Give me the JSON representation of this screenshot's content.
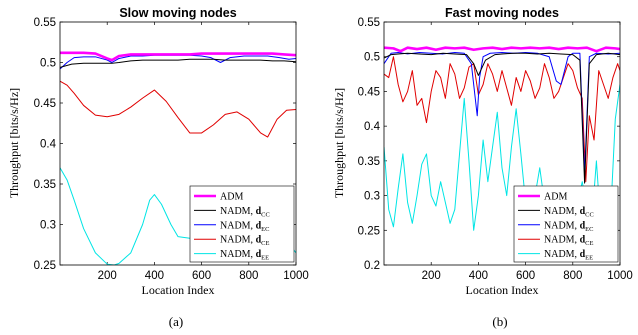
{
  "chart_data": [
    {
      "type": "line",
      "caption": "(a)",
      "title": "Slow moving nodes",
      "xlabel": "Location Index",
      "ylabel": "Throughput [bits/s/Hz]",
      "xlim": [
        0,
        1000
      ],
      "ylim": [
        0.25,
        0.55
      ],
      "xticks": [
        200,
        400,
        600,
        800,
        1000
      ],
      "yticks": [
        0.25,
        0.3,
        0.35,
        0.4,
        0.45,
        0.5,
        0.55
      ],
      "ytick_labels": [
        "0.25",
        "0.3",
        "0.35",
        "0.4",
        "0.45",
        "0.5",
        "0.55"
      ],
      "grid": false,
      "legend_position": "bottom-right",
      "series": [
        {
          "name": "ADM",
          "color": "#ff00ff",
          "width": 2.6,
          "x": [
            0,
            50,
            100,
            150,
            200,
            220,
            250,
            300,
            350,
            400,
            450,
            500,
            550,
            600,
            650,
            700,
            750,
            800,
            850,
            900,
            950,
            1000
          ],
          "y": [
            0.512,
            0.512,
            0.512,
            0.511,
            0.505,
            0.503,
            0.508,
            0.51,
            0.51,
            0.51,
            0.51,
            0.51,
            0.51,
            0.511,
            0.511,
            0.511,
            0.511,
            0.511,
            0.511,
            0.511,
            0.51,
            0.509
          ]
        },
        {
          "name": "NADM, dCC",
          "color": "#000000",
          "width": 1,
          "x": [
            0,
            50,
            100,
            150,
            200,
            220,
            250,
            300,
            350,
            400,
            450,
            500,
            550,
            600,
            650,
            700,
            750,
            800,
            850,
            900,
            950,
            1000
          ],
          "y": [
            0.494,
            0.498,
            0.499,
            0.499,
            0.499,
            0.499,
            0.5,
            0.502,
            0.503,
            0.503,
            0.503,
            0.503,
            0.504,
            0.504,
            0.504,
            0.503,
            0.503,
            0.503,
            0.503,
            0.502,
            0.502,
            0.501
          ]
        },
        {
          "name": "NADM, dEC",
          "color": "#0000ff",
          "width": 1,
          "x": [
            0,
            30,
            60,
            100,
            150,
            200,
            220,
            250,
            300,
            350,
            400,
            450,
            500,
            550,
            600,
            640,
            680,
            720,
            780,
            830,
            880,
            930,
            970,
            1000
          ],
          "y": [
            0.492,
            0.5,
            0.506,
            0.507,
            0.507,
            0.503,
            0.5,
            0.505,
            0.508,
            0.508,
            0.509,
            0.509,
            0.509,
            0.509,
            0.508,
            0.506,
            0.5,
            0.506,
            0.508,
            0.508,
            0.508,
            0.506,
            0.504,
            0.505
          ]
        },
        {
          "name": "NADM, dCE",
          "color": "#e00000",
          "width": 1,
          "x": [
            0,
            30,
            60,
            100,
            150,
            200,
            250,
            300,
            350,
            400,
            450,
            500,
            550,
            600,
            650,
            700,
            750,
            800,
            850,
            880,
            920,
            960,
            1000
          ],
          "y": [
            0.477,
            0.472,
            0.462,
            0.447,
            0.435,
            0.433,
            0.436,
            0.445,
            0.456,
            0.466,
            0.452,
            0.432,
            0.413,
            0.413,
            0.423,
            0.436,
            0.439,
            0.43,
            0.413,
            0.408,
            0.43,
            0.441,
            0.442
          ]
        },
        {
          "name": "NADM, dEE",
          "color": "#00e5e5",
          "width": 1,
          "x": [
            0,
            30,
            60,
            100,
            150,
            200,
            230,
            250,
            300,
            350,
            380,
            400,
            430,
            470,
            500,
            550,
            600,
            650,
            700,
            750,
            800,
            850,
            880,
            920,
            960,
            1000
          ],
          "y": [
            0.37,
            0.355,
            0.33,
            0.295,
            0.265,
            0.251,
            0.25,
            0.252,
            0.265,
            0.3,
            0.33,
            0.337,
            0.325,
            0.3,
            0.285,
            0.283,
            0.285,
            0.295,
            0.305,
            0.31,
            0.309,
            0.305,
            0.305,
            0.3,
            0.28,
            0.265
          ]
        }
      ],
      "legend": [
        "ADM",
        "NADM, dCC",
        "NADM, dEC",
        "NADM, dCE",
        "NADM, dEE"
      ]
    },
    {
      "type": "line",
      "caption": "(b)",
      "title": "Fast moving nodes",
      "xlabel": "Location Index",
      "ylabel": "Throughput [bits/s/Hz]",
      "xlim": [
        0,
        1000
      ],
      "ylim": [
        0.2,
        0.55
      ],
      "xticks": [
        200,
        400,
        600,
        800,
        1000
      ],
      "yticks": [
        0.2,
        0.25,
        0.3,
        0.35,
        0.4,
        0.45,
        0.5,
        0.55
      ],
      "ytick_labels": [
        "0.2",
        "0.25",
        "0.3",
        "0.35",
        "0.4",
        "0.45",
        "0.5",
        "0.55"
      ],
      "grid": false,
      "legend_position": "bottom-right",
      "series": [
        {
          "name": "ADM",
          "color": "#ff00ff",
          "width": 2.6,
          "x": [
            0,
            40,
            70,
            100,
            140,
            180,
            220,
            260,
            300,
            340,
            380,
            420,
            460,
            500,
            540,
            580,
            620,
            660,
            700,
            740,
            780,
            820,
            860,
            900,
            940,
            980,
            1000
          ],
          "y": [
            0.513,
            0.512,
            0.508,
            0.513,
            0.511,
            0.513,
            0.51,
            0.513,
            0.512,
            0.513,
            0.51,
            0.512,
            0.513,
            0.511,
            0.513,
            0.512,
            0.513,
            0.512,
            0.513,
            0.511,
            0.513,
            0.512,
            0.513,
            0.508,
            0.513,
            0.512,
            0.511
          ]
        },
        {
          "name": "NADM, dCC",
          "color": "#000000",
          "width": 1,
          "x": [
            0,
            30,
            60,
            100,
            150,
            200,
            250,
            300,
            350,
            380,
            400,
            430,
            470,
            500,
            550,
            600,
            650,
            700,
            750,
            800,
            830,
            850,
            870,
            900,
            950,
            1000
          ],
          "y": [
            0.498,
            0.503,
            0.504,
            0.505,
            0.504,
            0.503,
            0.505,
            0.504,
            0.503,
            0.49,
            0.473,
            0.495,
            0.503,
            0.504,
            0.505,
            0.505,
            0.504,
            0.505,
            0.504,
            0.503,
            0.495,
            0.318,
            0.49,
            0.503,
            0.505,
            0.503
          ]
        },
        {
          "name": "NADM, dEC",
          "color": "#0000ff",
          "width": 1,
          "x": [
            0,
            30,
            60,
            100,
            150,
            200,
            250,
            300,
            340,
            370,
            395,
            405,
            420,
            450,
            500,
            550,
            600,
            650,
            700,
            730,
            750,
            780,
            800,
            830,
            850,
            870,
            900,
            950,
            1000
          ],
          "y": [
            0.49,
            0.505,
            0.506,
            0.504,
            0.506,
            0.505,
            0.504,
            0.506,
            0.505,
            0.49,
            0.415,
            0.47,
            0.5,
            0.505,
            0.506,
            0.505,
            0.506,
            0.505,
            0.5,
            0.465,
            0.46,
            0.5,
            0.505,
            0.505,
            0.33,
            0.5,
            0.505,
            0.504,
            0.505
          ]
        },
        {
          "name": "NADM, dCE",
          "color": "#e00000",
          "width": 1,
          "x": [
            0,
            20,
            40,
            60,
            80,
            100,
            120,
            140,
            160,
            180,
            200,
            220,
            240,
            260,
            280,
            300,
            320,
            340,
            360,
            380,
            400,
            420,
            440,
            460,
            480,
            500,
            520,
            540,
            560,
            580,
            600,
            620,
            640,
            660,
            680,
            700,
            720,
            740,
            760,
            780,
            800,
            820,
            840,
            855,
            870,
            890,
            910,
            930,
            950,
            970,
            990,
            1000
          ],
          "y": [
            0.475,
            0.47,
            0.5,
            0.46,
            0.435,
            0.45,
            0.48,
            0.43,
            0.44,
            0.405,
            0.45,
            0.48,
            0.47,
            0.44,
            0.49,
            0.475,
            0.44,
            0.455,
            0.485,
            0.49,
            0.445,
            0.46,
            0.49,
            0.475,
            0.45,
            0.48,
            0.455,
            0.43,
            0.47,
            0.45,
            0.48,
            0.465,
            0.44,
            0.455,
            0.49,
            0.47,
            0.44,
            0.45,
            0.47,
            0.49,
            0.48,
            0.455,
            0.44,
            0.32,
            0.415,
            0.38,
            0.48,
            0.46,
            0.44,
            0.47,
            0.49,
            0.48
          ]
        },
        {
          "name": "NADM, dEE",
          "color": "#00e5e5",
          "width": 1,
          "x": [
            0,
            20,
            40,
            60,
            80,
            100,
            120,
            140,
            160,
            180,
            200,
            220,
            240,
            260,
            280,
            300,
            320,
            340,
            360,
            380,
            400,
            420,
            440,
            460,
            480,
            500,
            520,
            540,
            560,
            580,
            600,
            620,
            640,
            660,
            680,
            700,
            720,
            740,
            760,
            780,
            800,
            820,
            840,
            860,
            880,
            900,
            920,
            940,
            960,
            980,
            1000
          ],
          "y": [
            0.37,
            0.28,
            0.255,
            0.31,
            0.36,
            0.29,
            0.26,
            0.3,
            0.345,
            0.36,
            0.3,
            0.285,
            0.32,
            0.29,
            0.26,
            0.28,
            0.36,
            0.44,
            0.35,
            0.25,
            0.3,
            0.38,
            0.32,
            0.37,
            0.42,
            0.34,
            0.3,
            0.37,
            0.425,
            0.36,
            0.29,
            0.262,
            0.3,
            0.34,
            0.29,
            0.262,
            0.3,
            0.31,
            0.29,
            0.27,
            0.265,
            0.29,
            0.32,
            0.28,
            0.26,
            0.35,
            0.25,
            0.3,
            0.27,
            0.41,
            0.46
          ]
        }
      ],
      "legend": [
        "ADM",
        "NADM, dCC",
        "NADM, dEC",
        "NADM, dCE",
        "NADM, dEE"
      ]
    }
  ]
}
